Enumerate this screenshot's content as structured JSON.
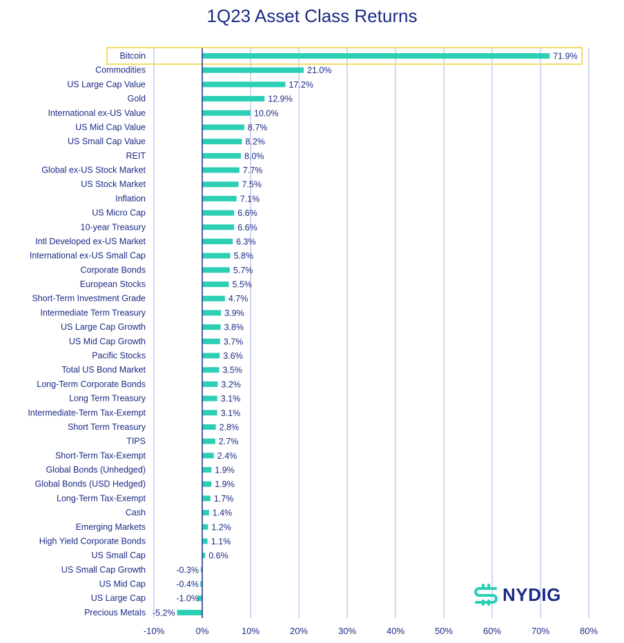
{
  "chart_data": {
    "type": "bar",
    "orientation": "horizontal",
    "title": "1Q23 Asset Class Returns",
    "categories": [
      "Bitcoin",
      "Commodities",
      "US Large Cap Value",
      "Gold",
      "International ex-US Value",
      "US Mid Cap Value",
      "US Small Cap Value",
      "REIT",
      "Global ex-US Stock Market",
      "US Stock Market",
      "Inflation",
      "US Micro Cap",
      "10-year Treasury",
      "Intl Developed ex-US Market",
      "International ex-US Small Cap",
      "Corporate Bonds",
      "European Stocks",
      "Short-Term Investment Grade",
      "Intermediate Term Treasury",
      "US Large Cap Growth",
      "US Mid Cap Growth",
      "Pacific Stocks",
      "Total US Bond Market",
      "Long-Term Corporate Bonds",
      "Long Term Treasury",
      "Intermediate-Term Tax-Exempt",
      "Short Term Treasury",
      "TIPS",
      "Short-Term Tax-Exempt",
      "Global Bonds (Unhedged)",
      "Global Bonds (USD Hedged)",
      "Long-Term Tax-Exempt",
      "Cash",
      "Emerging Markets",
      "High Yield Corporate Bonds",
      "US Small Cap",
      "US Small Cap Growth",
      "US Mid Cap",
      "US Large Cap",
      "Precious Metals"
    ],
    "values": [
      71.9,
      21.0,
      17.2,
      12.9,
      10.0,
      8.7,
      8.2,
      8.0,
      7.7,
      7.5,
      7.1,
      6.6,
      6.6,
      6.3,
      5.8,
      5.7,
      5.5,
      4.7,
      3.9,
      3.8,
      3.7,
      3.6,
      3.5,
      3.2,
      3.1,
      3.1,
      2.8,
      2.7,
      2.4,
      1.9,
      1.9,
      1.7,
      1.4,
      1.2,
      1.1,
      0.6,
      -0.3,
      -0.4,
      -1.0,
      -5.2
    ],
    "data_labels": [
      "71.9%",
      "21.0%",
      "17.2%",
      "12.9%",
      "10.0%",
      "8.7%",
      "8.2%",
      "8.0%",
      "7.7%",
      "7.5%",
      "7.1%",
      "6.6%",
      "6.6%",
      "6.3%",
      "5.8%",
      "5.7%",
      "5.5%",
      "4.7%",
      "3.9%",
      "3.8%",
      "3.7%",
      "3.6%",
      "3.5%",
      "3.2%",
      "3.1%",
      "3.1%",
      "2.8%",
      "2.7%",
      "2.4%",
      "1.9%",
      "1.9%",
      "1.7%",
      "1.4%",
      "1.2%",
      "1.1%",
      "0.6%",
      "-0.3%",
      "-0.4%",
      "-1.0%",
      "-5.2%"
    ],
    "xlim": [
      -10,
      80
    ],
    "xticks": [
      -10,
      0,
      10,
      20,
      30,
      40,
      50,
      60,
      70,
      80
    ],
    "xtick_labels": [
      "-10%",
      "0%",
      "10%",
      "20%",
      "30%",
      "40%",
      "50%",
      "60%",
      "70%",
      "80%"
    ],
    "grid": "vertical",
    "highlighted_category": "Bitcoin",
    "colors": {
      "bar": "#2ccfb4",
      "text": "#1b2a85",
      "grid": "#c5c9ee",
      "zero_line": "#1b2a85",
      "highlight_box": "#f3dc64"
    }
  },
  "brand": {
    "logo_text": "NYDIG",
    "logo_color": "#2ccfb4"
  }
}
